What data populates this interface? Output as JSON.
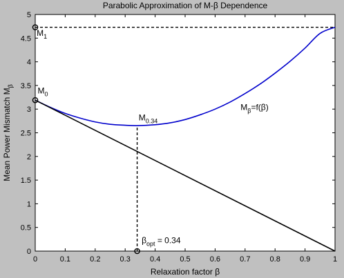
{
  "figure": {
    "background": "#c0c0c0"
  },
  "chart_data": {
    "type": "line",
    "title": "Parabolic Approximation of M-β Dependence",
    "xlabel": "Relaxation factor β",
    "ylabel": {
      "main": "Mean Power Mismatch M",
      "sub": "β"
    },
    "xlim": [
      0,
      1
    ],
    "ylim": [
      0,
      5
    ],
    "x_ticks": [
      0,
      0.1,
      0.2,
      0.3,
      0.4,
      0.5,
      0.6,
      0.7,
      0.8,
      0.9,
      1
    ],
    "x_tick_labels": [
      "0",
      "0.1",
      "0.2",
      "0.3",
      "0.4",
      "0.5",
      "0.6",
      "0.7",
      "0.8",
      "0.9",
      "1"
    ],
    "y_ticks": [
      0,
      0.5,
      1,
      1.5,
      2,
      2.5,
      3,
      3.5,
      4,
      4.5,
      5
    ],
    "y_tick_labels": [
      "0",
      "0.5",
      "1",
      "1.5",
      "2",
      "2.5",
      "3",
      "3.5",
      "4",
      "4.5",
      "5"
    ],
    "grid": false,
    "plot_background": "#ffffff",
    "series": [
      {
        "style": "solid",
        "color": "#0000cc",
        "x": [
          0,
          0.05,
          0.1,
          0.15,
          0.2,
          0.25,
          0.3,
          0.34,
          0.4,
          0.45,
          0.5,
          0.55,
          0.6,
          0.65,
          0.7,
          0.75,
          0.8,
          0.85,
          0.9,
          0.95,
          1
        ],
        "y": [
          3.19,
          3.04,
          2.91,
          2.81,
          2.73,
          2.68,
          2.66,
          2.65,
          2.67,
          2.71,
          2.78,
          2.88,
          3.0,
          3.15,
          3.33,
          3.53,
          3.76,
          4.01,
          4.29,
          4.6,
          4.73
        ]
      },
      {
        "style": "solid",
        "color": "#000000",
        "x": [
          0,
          1
        ],
        "y": [
          3.19,
          0
        ]
      },
      {
        "style": "dashed",
        "color": "#000000",
        "x": [
          0,
          1,
          1
        ],
        "y": [
          4.73,
          4.73,
          4.73
        ]
      },
      {
        "style": "dashed",
        "color": "#000000",
        "x": [
          0.34,
          0.34
        ],
        "y": [
          0,
          2.65
        ]
      }
    ],
    "markers": [
      {
        "shape": "circle",
        "x": 0,
        "y": 4.73
      },
      {
        "shape": "circle",
        "x": 0,
        "y": 3.19
      },
      {
        "shape": "circle",
        "x": 0.34,
        "y": 0
      }
    ],
    "annotations": [
      {
        "x": 0.005,
        "y": 4.55,
        "main": "M",
        "sub": "1",
        "tail": ""
      },
      {
        "x": 0.008,
        "y": 3.33,
        "main": "M",
        "sub": "0",
        "tail": ""
      },
      {
        "x": 0.345,
        "y": 2.76,
        "main": "M",
        "sub": "0.34",
        "tail": ""
      },
      {
        "x": 0.685,
        "y": 2.98,
        "main": "M",
        "sub": "β",
        "tail": "=f(β)"
      },
      {
        "x": 0.355,
        "y": 0.17,
        "main": "β",
        "sub": "opt",
        "tail": " = 0.34"
      }
    ]
  }
}
